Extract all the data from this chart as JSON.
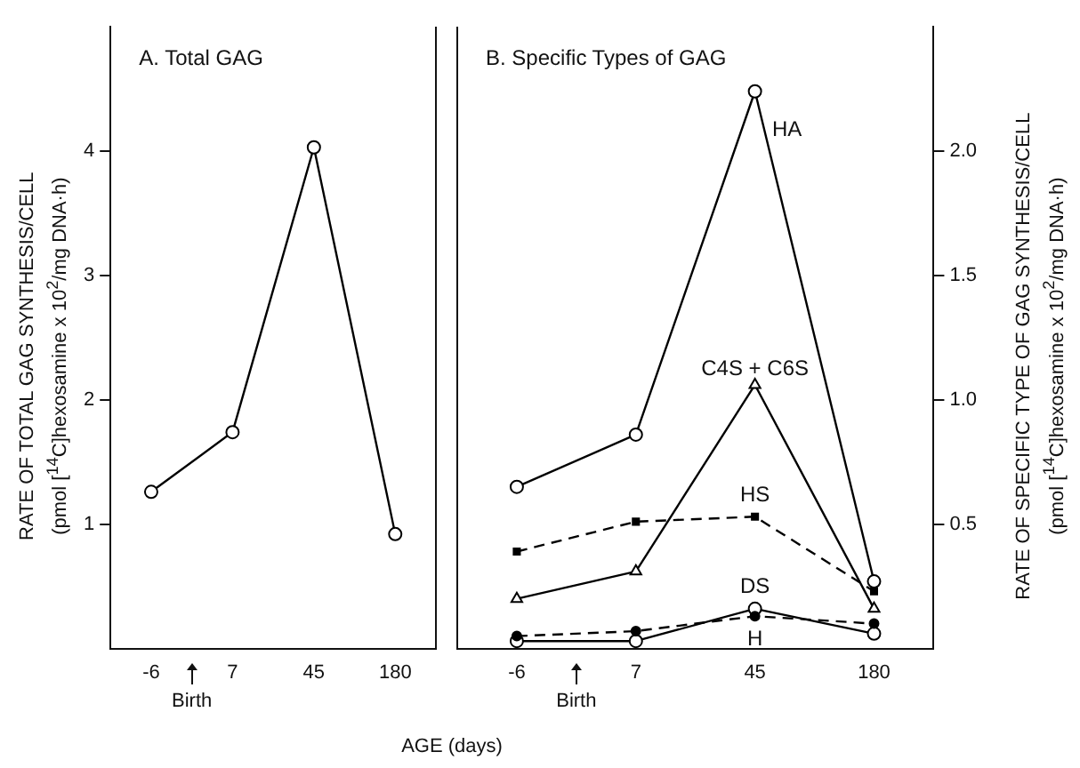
{
  "chart_data": [
    {
      "type": "line",
      "title": "A. Total GAG",
      "ylabel": "RATE OF TOTAL GAG SYNTHESIS/CELL\n(pmol [$^{14}$C]hexosamine x 10$^{2}$/mg DNA·h)",
      "categories": [
        "-6",
        "7",
        "45",
        "180"
      ],
      "ylim": [
        0,
        5
      ],
      "yticks": [
        1,
        2,
        3,
        4
      ],
      "series": [
        {
          "color": "#000000",
          "values": [
            1.26,
            1.74,
            4.03,
            0.92
          ],
          "marker": "circle",
          "line_style": "solid"
        }
      ],
      "annotations": [
        "Birth"
      ],
      "grid": false,
      "legend": false
    },
    {
      "type": "line",
      "title": "B. Specific Types of GAG",
      "xlabel": "AGE (days)",
      "ylabel": "RATE OF SPECIFIC TYPE OF GAG SYNTHESIS/CELL\n(pmol [$^{14}$C]hexosamine x 10$^{2}$/mg DNA·h)",
      "categories": [
        "-6",
        "7",
        "45",
        "180"
      ],
      "ylim": [
        0,
        2.5
      ],
      "yticks": [
        {
          "value": 0.5,
          "label": "0.5"
        },
        {
          "value": 1,
          "label": "1.0"
        },
        {
          "value": 1.5,
          "label": "1.5"
        },
        {
          "value": 2,
          "label": "2.0"
        }
      ],
      "series": [
        {
          "name": "HA",
          "color": "#000000",
          "values": [
            0.65,
            0.86,
            2.24,
            0.27
          ],
          "marker": "circle",
          "line_style": "solid"
        },
        {
          "name": "C4S + C6S",
          "color": "#000000",
          "values": [
            0.2,
            0.31,
            1.06,
            0.16
          ],
          "marker": "triangle",
          "line_style": "solid"
        },
        {
          "name": "HS",
          "color": "#000000",
          "values": [
            0.39,
            0.51,
            0.53,
            0.23
          ],
          "marker": "square",
          "line_style": "dashed"
        },
        {
          "name": "DS",
          "color": "#000000",
          "values": [
            0.03,
            0.03,
            0.16,
            0.06
          ],
          "marker": "circle",
          "line_style": "solid"
        },
        {
          "name": "H",
          "color": "#000000",
          "values": [
            0.05,
            0.07,
            0.13,
            0.1
          ],
          "marker": "circle",
          "line_style": "dashed"
        }
      ],
      "annotations": [
        "Birth"
      ],
      "grid": false,
      "legend": false
    }
  ]
}
